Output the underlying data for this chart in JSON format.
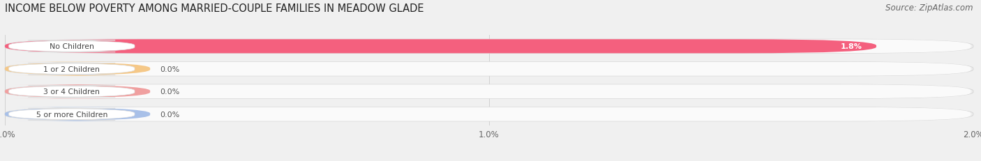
{
  "title": "INCOME BELOW POVERTY AMONG MARRIED-COUPLE FAMILIES IN MEADOW GLADE",
  "source": "Source: ZipAtlas.com",
  "categories": [
    "No Children",
    "1 or 2 Children",
    "3 or 4 Children",
    "5 or more Children"
  ],
  "values": [
    1.8,
    0.0,
    0.0,
    0.0
  ],
  "bar_colors": [
    "#f4607e",
    "#f5c888",
    "#f0a0a0",
    "#a8c0e8"
  ],
  "xlim": [
    0,
    2.0
  ],
  "xticks": [
    0.0,
    1.0,
    2.0
  ],
  "xtick_labels": [
    "0.0%",
    "1.0%",
    "2.0%"
  ],
  "background_color": "#f0f0f0",
  "bar_bg_color": "#f0f0f0",
  "bar_inner_color": "#fafafa",
  "title_fontsize": 10.5,
  "source_fontsize": 8.5,
  "label_text_color": "#444444",
  "value_label_color_dark": "#555555",
  "value_label_color_light": "#ffffff"
}
